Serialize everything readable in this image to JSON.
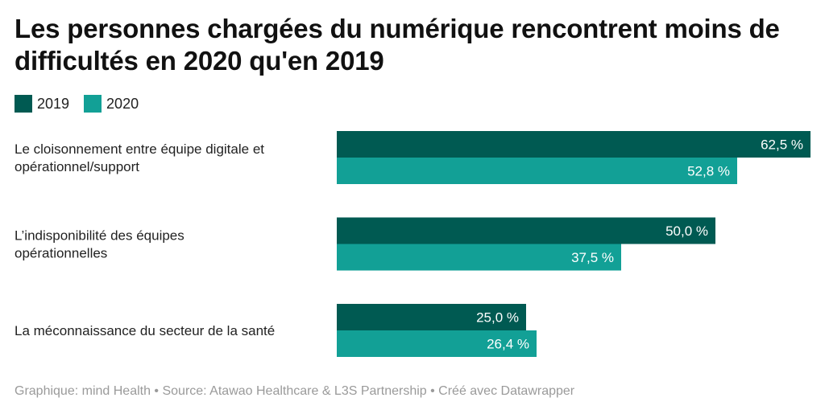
{
  "title": "Les personnes chargées du numérique rencontrent moins de difficultés en 2020 qu'en 2019",
  "colors": {
    "series_2019": "#005a52",
    "series_2020": "#12a096",
    "label_text": "#ffffff"
  },
  "chart_data": {
    "type": "bar",
    "orientation": "horizontal",
    "categories": [
      "Le cloisonnement entre équipe digitale et opérationnel/support",
      "L’indisponibilité des équipes opérationnelles",
      "La méconnaissance du secteur de la santé"
    ],
    "series": [
      {
        "name": "2019",
        "values": [
          62.5,
          50.0,
          25.0
        ],
        "labels": [
          "62,5 %",
          "50,0 %",
          "25,0 %"
        ]
      },
      {
        "name": "2020",
        "values": [
          52.8,
          37.5,
          26.4
        ],
        "labels": [
          "52,8 %",
          "37,5 %",
          "26,4 %"
        ]
      }
    ],
    "xlim": [
      0,
      62.5
    ],
    "grid": false,
    "legend_position": "top-left"
  },
  "footer": "Graphique: mind Health • Source: Atawao Healthcare & L3S Partnership • Créé avec Datawrapper"
}
